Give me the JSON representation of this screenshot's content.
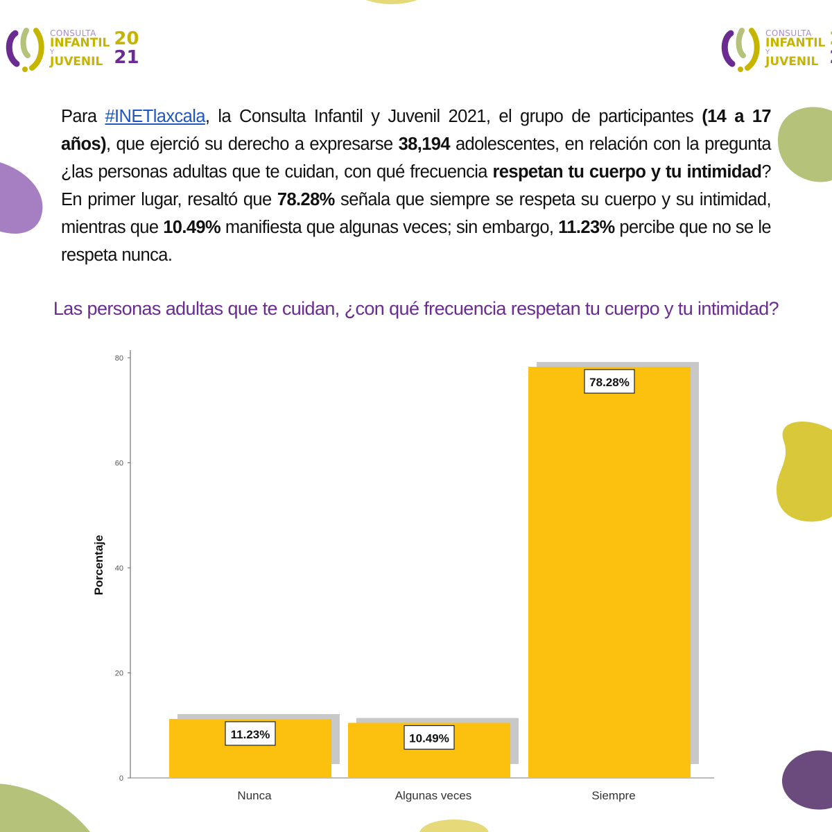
{
  "branding": {
    "line1": "CONSULTA",
    "line2": "INFANTIL",
    "line3": "Y",
    "line4": "JUVENIL",
    "year_top": "20",
    "year_bottom": "21"
  },
  "colors": {
    "purple": "#6a2c91",
    "bar": "#fcc10e",
    "shadow": "#c8c8c8",
    "olive": "#b5c27a",
    "mustard": "#d8c83a",
    "lavender": "#a67fc2",
    "plum": "#6b4a7e"
  },
  "paragraph": {
    "p1": "Para ",
    "hashtag": "#INETlaxcala",
    "p2": ", la Consulta Infantil y Juvenil 2021, el grupo de participantes ",
    "b1": "(14 a 17 años)",
    "p3": ", que ejerció su derecho a expresarse ",
    "b2": "38,194",
    "p4": " adolescentes, en relación con la pregunta ¿las personas adultas que te cuidan, con qué frecuencia ",
    "b3": "respetan tu cuerpo y tu intimidad",
    "p5": "? En primer lugar, resaltó que ",
    "b4": "78.28%",
    "p6": " señala que siempre se respeta su cuerpo y su intimidad, mientras que ",
    "b5": "10.49%",
    "p7": " manifiesta que algunas veces; sin embargo, ",
    "b6": "11.23%",
    "p8": " percibe que no se le respeta nunca."
  },
  "chart_data": {
    "type": "bar",
    "title": "Las personas adultas que te cuidan, ¿con qué frecuencia respetan tu cuerpo y tu intimidad?",
    "xlabel": "",
    "ylabel": "Porcentaje",
    "categories": [
      "Nunca",
      "Algunas veces",
      "Siempre"
    ],
    "values": [
      11.23,
      10.49,
      78.28
    ],
    "data_labels": [
      "11.23%",
      "10.49%",
      "78.28%"
    ],
    "ylim": [
      0,
      80
    ],
    "yticks": [
      0,
      20,
      40,
      60,
      80
    ],
    "grid": false,
    "legend": "none"
  }
}
